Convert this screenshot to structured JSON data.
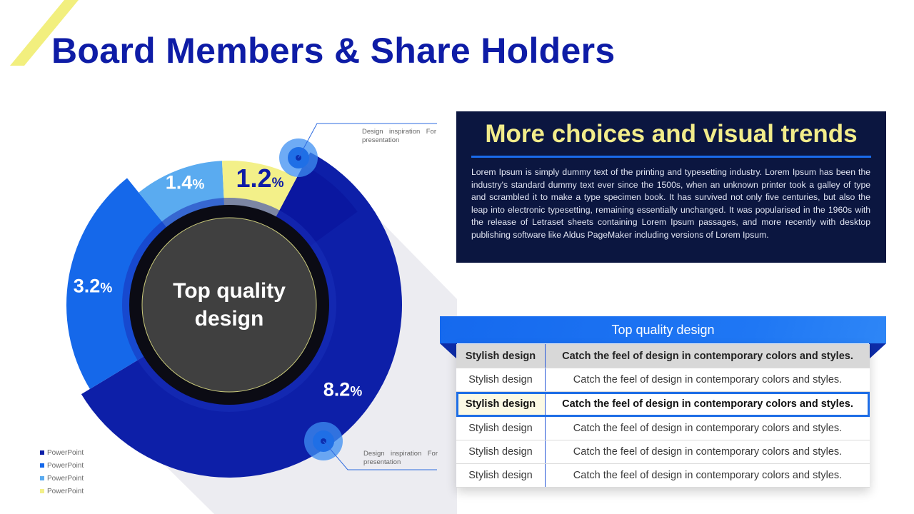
{
  "slide": {
    "title": "Board Members & Share Holders"
  },
  "colors": {
    "title": "#0e1ca6",
    "dark_blue": "#0d1fa8",
    "blue": "#1568ea",
    "light_blue": "#5aabf0",
    "yellow": "#f3f089",
    "center": "#404040",
    "panel": "#0b1640",
    "panel_title": "#f2ec8a"
  },
  "chart_data": {
    "type": "pie",
    "center_label": "Top quality design",
    "percent_symbol": "%",
    "slices": [
      {
        "label": "PowerPoint",
        "value": 8.2,
        "display": "8.2",
        "color": "#0d1fa8"
      },
      {
        "label": "PowerPoint",
        "value": 3.2,
        "display": "3.2",
        "color": "#1568ea"
      },
      {
        "label": "PowerPoint",
        "value": 1.4,
        "display": "1.4",
        "color": "#5aabf0"
      },
      {
        "label": "PowerPoint",
        "value": 1.2,
        "display": "1.2",
        "color": "#f3f089"
      }
    ],
    "callouts": [
      "Design inspiration For presentation",
      "Design inspiration For presentation"
    ],
    "legend": [
      "PowerPoint",
      "PowerPoint",
      "PowerPoint",
      "PowerPoint"
    ]
  },
  "info_panel": {
    "title": "More choices and visual trends",
    "body": "Lorem Ipsum is simply dummy text of the printing and typesetting industry. Lorem Ipsum has been the industry's standard dummy text ever since the 1500s, when an unknown printer took a galley of type and scrambled it to make a type specimen book. It has survived not only five centuries, but also the leap into electronic typesetting, remaining essentially unchanged. It was popularised in the 1960s with the release of Letraset sheets containing Lorem Ipsum passages, and more recently with desktop publishing software like Aldus PageMaker including versions of Lorem Ipsum."
  },
  "table": {
    "title": "Top quality design",
    "rows": [
      {
        "c1": "Stylish design",
        "c2": "Catch the feel of design in contemporary colors and styles.",
        "style": "head"
      },
      {
        "c1": "Stylish design",
        "c2": "Catch the feel of design in contemporary colors and styles.",
        "style": ""
      },
      {
        "c1": "Stylish design",
        "c2": "Catch the feel of design in contemporary colors and styles.",
        "style": "hl"
      },
      {
        "c1": "Stylish design",
        "c2": "Catch the feel of design in contemporary colors and styles.",
        "style": ""
      },
      {
        "c1": "Stylish design",
        "c2": "Catch the feel of design in contemporary colors and styles.",
        "style": ""
      },
      {
        "c1": "Stylish design",
        "c2": "Catch the feel of design in contemporary colors and styles.",
        "style": ""
      }
    ]
  }
}
